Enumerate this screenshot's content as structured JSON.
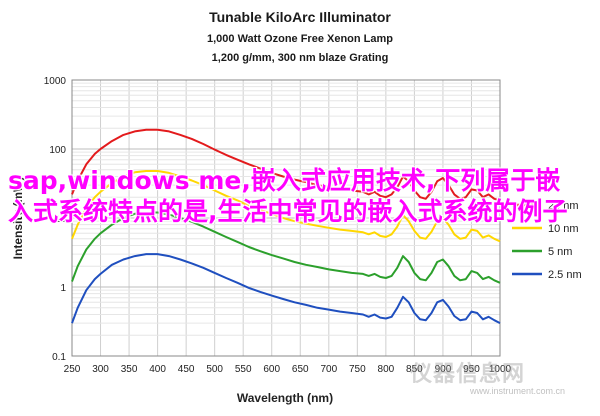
{
  "chart_data": {
    "type": "line",
    "title": "Tunable KiloArc Illuminator",
    "subtitle1": "1,000 Watt Ozone Free Xenon Lamp",
    "subtitle2": "1,200 g/mm, 300 nm blaze Grating",
    "xlabel": "Wavelength (nm)",
    "ylabel": "Intensity (mW)",
    "xlim": [
      250,
      1000
    ],
    "ylim": [
      0.1,
      1000
    ],
    "yscale": "log",
    "grid": true,
    "legend_position": "right",
    "x_ticks": [
      "250",
      "300",
      "350",
      "400",
      "450",
      "500",
      "550",
      "600",
      "650",
      "700",
      "750",
      "800",
      "850",
      "900",
      "950",
      "1000"
    ],
    "y_ticks": [
      "0.1",
      "1",
      "10",
      "100",
      "1000"
    ],
    "series": [
      {
        "name": "20 nm",
        "color": "#e31a1c",
        "points": [
          [
            250,
            22
          ],
          [
            260,
            35
          ],
          [
            275,
            60
          ],
          [
            290,
            85
          ],
          [
            300,
            100
          ],
          [
            320,
            130
          ],
          [
            340,
            160
          ],
          [
            360,
            180
          ],
          [
            380,
            190
          ],
          [
            400,
            190
          ],
          [
            420,
            180
          ],
          [
            440,
            160
          ],
          [
            460,
            140
          ],
          [
            480,
            118
          ],
          [
            500,
            98
          ],
          [
            520,
            82
          ],
          [
            540,
            70
          ],
          [
            560,
            60
          ],
          [
            580,
            52
          ],
          [
            600,
            45
          ],
          [
            620,
            40
          ],
          [
            640,
            36
          ],
          [
            660,
            33
          ],
          [
            680,
            30
          ],
          [
            700,
            28
          ],
          [
            720,
            26
          ],
          [
            740,
            25
          ],
          [
            760,
            24
          ],
          [
            770,
            22
          ],
          [
            780,
            24
          ],
          [
            790,
            21
          ],
          [
            800,
            20
          ],
          [
            810,
            22
          ],
          [
            820,
            28
          ],
          [
            830,
            40
          ],
          [
            840,
            34
          ],
          [
            850,
            25
          ],
          [
            860,
            20
          ],
          [
            870,
            19
          ],
          [
            880,
            24
          ],
          [
            890,
            34
          ],
          [
            900,
            38
          ],
          [
            910,
            30
          ],
          [
            920,
            22
          ],
          [
            930,
            19
          ],
          [
            940,
            20
          ],
          [
            950,
            26
          ],
          [
            960,
            25
          ],
          [
            970,
            20
          ],
          [
            980,
            22
          ],
          [
            990,
            19
          ],
          [
            1000,
            18
          ]
        ]
      },
      {
        "name": "10 nm",
        "color": "#ffd700",
        "points": [
          [
            250,
            5
          ],
          [
            260,
            8
          ],
          [
            275,
            14
          ],
          [
            290,
            20
          ],
          [
            300,
            24
          ],
          [
            320,
            32
          ],
          [
            340,
            40
          ],
          [
            360,
            46
          ],
          [
            380,
            48
          ],
          [
            400,
            48
          ],
          [
            420,
            45
          ],
          [
            440,
            40
          ],
          [
            460,
            35
          ],
          [
            480,
            30
          ],
          [
            500,
            25
          ],
          [
            520,
            21
          ],
          [
            540,
            18
          ],
          [
            560,
            15
          ],
          [
            580,
            13
          ],
          [
            600,
            11.5
          ],
          [
            620,
            10
          ],
          [
            640,
            9
          ],
          [
            660,
            8.3
          ],
          [
            680,
            7.7
          ],
          [
            700,
            7.2
          ],
          [
            720,
            6.8
          ],
          [
            740,
            6.5
          ],
          [
            760,
            6.2
          ],
          [
            770,
            5.8
          ],
          [
            780,
            6.2
          ],
          [
            790,
            5.5
          ],
          [
            800,
            5.3
          ],
          [
            810,
            5.8
          ],
          [
            820,
            7.5
          ],
          [
            830,
            11
          ],
          [
            840,
            9
          ],
          [
            850,
            6.5
          ],
          [
            860,
            5.2
          ],
          [
            870,
            5
          ],
          [
            880,
            6.3
          ],
          [
            890,
            9
          ],
          [
            900,
            10
          ],
          [
            910,
            8
          ],
          [
            920,
            5.8
          ],
          [
            930,
            5
          ],
          [
            940,
            5.2
          ],
          [
            950,
            6.8
          ],
          [
            960,
            6.5
          ],
          [
            970,
            5.2
          ],
          [
            980,
            5.6
          ],
          [
            990,
            5
          ],
          [
            1000,
            4.6
          ]
        ]
      },
      {
        "name": "5 nm",
        "color": "#2ca02c",
        "points": [
          [
            250,
            1.2
          ],
          [
            260,
            2
          ],
          [
            275,
            3.5
          ],
          [
            290,
            5
          ],
          [
            300,
            6
          ],
          [
            320,
            8
          ],
          [
            340,
            10
          ],
          [
            360,
            11.5
          ],
          [
            380,
            12
          ],
          [
            400,
            12
          ],
          [
            420,
            11.2
          ],
          [
            440,
            10
          ],
          [
            460,
            8.8
          ],
          [
            480,
            7.5
          ],
          [
            500,
            6.3
          ],
          [
            520,
            5.3
          ],
          [
            540,
            4.5
          ],
          [
            560,
            3.8
          ],
          [
            580,
            3.3
          ],
          [
            600,
            2.9
          ],
          [
            620,
            2.6
          ],
          [
            640,
            2.3
          ],
          [
            660,
            2.1
          ],
          [
            680,
            1.95
          ],
          [
            700,
            1.8
          ],
          [
            720,
            1.7
          ],
          [
            740,
            1.6
          ],
          [
            760,
            1.55
          ],
          [
            770,
            1.45
          ],
          [
            780,
            1.55
          ],
          [
            790,
            1.4
          ],
          [
            800,
            1.35
          ],
          [
            810,
            1.45
          ],
          [
            820,
            1.9
          ],
          [
            830,
            2.8
          ],
          [
            840,
            2.3
          ],
          [
            850,
            1.6
          ],
          [
            860,
            1.3
          ],
          [
            870,
            1.25
          ],
          [
            880,
            1.6
          ],
          [
            890,
            2.3
          ],
          [
            900,
            2.5
          ],
          [
            910,
            2
          ],
          [
            920,
            1.45
          ],
          [
            930,
            1.25
          ],
          [
            940,
            1.3
          ],
          [
            950,
            1.7
          ],
          [
            960,
            1.6
          ],
          [
            970,
            1.3
          ],
          [
            980,
            1.4
          ],
          [
            990,
            1.25
          ],
          [
            1000,
            1.15
          ]
        ]
      },
      {
        "name": "2.5 nm",
        "color": "#1f4fbf",
        "points": [
          [
            250,
            0.3
          ],
          [
            260,
            0.5
          ],
          [
            275,
            0.9
          ],
          [
            290,
            1.3
          ],
          [
            300,
            1.55
          ],
          [
            320,
            2.1
          ],
          [
            340,
            2.5
          ],
          [
            360,
            2.8
          ],
          [
            380,
            3
          ],
          [
            400,
            3
          ],
          [
            420,
            2.8
          ],
          [
            440,
            2.5
          ],
          [
            460,
            2.2
          ],
          [
            480,
            1.9
          ],
          [
            500,
            1.6
          ],
          [
            520,
            1.35
          ],
          [
            540,
            1.15
          ],
          [
            560,
            0.97
          ],
          [
            580,
            0.85
          ],
          [
            600,
            0.75
          ],
          [
            620,
            0.67
          ],
          [
            640,
            0.6
          ],
          [
            660,
            0.55
          ],
          [
            680,
            0.5
          ],
          [
            700,
            0.47
          ],
          [
            720,
            0.44
          ],
          [
            740,
            0.42
          ],
          [
            760,
            0.4
          ],
          [
            770,
            0.37
          ],
          [
            780,
            0.4
          ],
          [
            790,
            0.36
          ],
          [
            800,
            0.35
          ],
          [
            810,
            0.37
          ],
          [
            820,
            0.5
          ],
          [
            830,
            0.72
          ],
          [
            840,
            0.6
          ],
          [
            850,
            0.42
          ],
          [
            860,
            0.34
          ],
          [
            870,
            0.33
          ],
          [
            880,
            0.42
          ],
          [
            890,
            0.6
          ],
          [
            900,
            0.65
          ],
          [
            910,
            0.52
          ],
          [
            920,
            0.38
          ],
          [
            930,
            0.33
          ],
          [
            940,
            0.34
          ],
          [
            950,
            0.44
          ],
          [
            960,
            0.42
          ],
          [
            970,
            0.34
          ],
          [
            980,
            0.37
          ],
          [
            990,
            0.33
          ],
          [
            1000,
            0.3
          ]
        ]
      }
    ]
  },
  "overlay": {
    "text": "sap,windows me,嵌入式应用技术,下列属于嵌入式系统特点的是,生活中常见的嵌入式系统的例子"
  },
  "watermark": {
    "text": "仪器信息网",
    "url": "www.instrument.com.cn"
  }
}
